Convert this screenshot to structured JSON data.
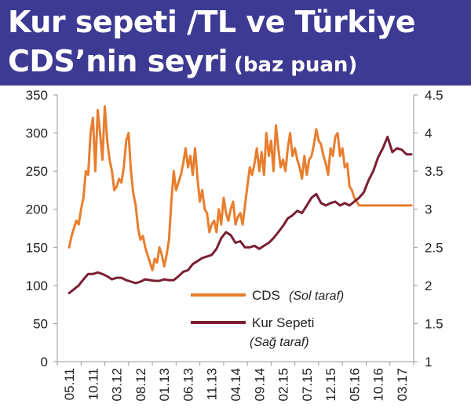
{
  "header": {
    "title_line1": "Kur sepeti /TL ve Türkiye",
    "title_line2": "CDS’nin seyri",
    "title_unit": "(baz puan)"
  },
  "colors": {
    "header_bg": "#3c3a93",
    "cds": "#e97e2e",
    "kur_sepeti": "#7a1f33"
  },
  "chart_data": {
    "type": "line",
    "categories": [
      "05.11",
      "10.11",
      "03.12",
      "08.12",
      "01.13",
      "06.13",
      "11.13",
      "04.14",
      "09.14",
      "02.15",
      "07.15",
      "12.15",
      "05.16",
      "10.16",
      "03.17"
    ],
    "y_left": {
      "range": [
        0,
        350
      ],
      "ticks": [
        "0",
        "50",
        "100",
        "150",
        "200",
        "250",
        "300",
        "350"
      ]
    },
    "y_right": {
      "range": [
        1,
        4.5
      ],
      "ticks": [
        "1",
        "1.5",
        "2",
        "2.5",
        "3",
        "3.5",
        "4",
        "4.5"
      ]
    },
    "grid": false,
    "legend_position": "center-right",
    "series": [
      {
        "name": "CDS",
        "note": "(Sol taraf)",
        "axis": "left",
        "x": [
          0,
          0.1,
          0.2,
          0.3,
          0.4,
          0.5,
          0.6,
          0.7,
          0.8,
          0.9,
          1.0,
          1.1,
          1.2,
          1.3,
          1.4,
          1.5,
          1.6,
          1.7,
          1.8,
          1.9,
          2.0,
          2.1,
          2.2,
          2.3,
          2.4,
          2.5,
          2.6,
          2.7,
          2.8,
          2.9,
          3.0,
          3.1,
          3.2,
          3.3,
          3.4,
          3.5,
          3.6,
          3.7,
          3.8,
          3.9,
          4.0,
          4.1,
          4.2,
          4.3,
          4.4,
          4.5,
          4.6,
          4.7,
          4.8,
          4.9,
          5.0,
          5.1,
          5.2,
          5.3,
          5.4,
          5.5,
          5.6,
          5.7,
          5.8,
          5.9,
          6.0,
          6.1,
          6.2,
          6.3,
          6.4,
          6.5,
          6.6,
          6.7,
          6.8,
          6.9,
          7.0,
          7.1,
          7.2,
          7.3,
          7.4,
          7.5,
          7.6,
          7.7,
          7.8,
          7.9,
          8.0,
          8.1,
          8.2,
          8.3,
          8.4,
          8.5,
          8.6,
          8.7,
          8.8,
          8.9,
          9.0,
          9.1,
          9.2,
          9.3,
          9.4,
          9.5,
          9.6,
          9.7,
          9.8,
          9.9,
          10.0,
          10.1,
          10.2,
          10.3,
          10.4,
          10.5,
          10.6,
          10.7,
          10.8,
          10.9,
          11.0,
          11.1,
          11.2,
          11.3,
          11.4,
          11.5,
          11.6,
          11.7,
          11.8,
          11.9,
          12.0,
          12.1,
          12.2,
          12.3,
          12.4,
          12.5,
          12.6,
          12.7,
          12.8,
          12.9,
          13.0,
          13.1,
          13.2,
          13.3,
          13.4,
          13.5,
          13.6,
          13.7,
          13.8,
          13.9,
          14.0,
          14.1,
          14.2,
          14.3,
          14.4
        ],
        "values": [
          150,
          165,
          175,
          185,
          180,
          200,
          215,
          250,
          245,
          300,
          320,
          250,
          330,
          300,
          265,
          335,
          290,
          265,
          250,
          225,
          230,
          240,
          235,
          255,
          290,
          300,
          250,
          220,
          205,
          175,
          160,
          165,
          150,
          140,
          130,
          120,
          135,
          130,
          150,
          140,
          125,
          140,
          160,
          210,
          250,
          225,
          235,
          245,
          260,
          280,
          255,
          270,
          245,
          280,
          240,
          210,
          225,
          200,
          195,
          170,
          180,
          185,
          170,
          200,
          180,
          215,
          195,
          185,
          200,
          210,
          180,
          190,
          195,
          180,
          205,
          230,
          255,
          245,
          260,
          280,
          250,
          275,
          245,
          300,
          270,
          290,
          250,
          310,
          280,
          255,
          265,
          250,
          280,
          300,
          270,
          280,
          265,
          255,
          240,
          270,
          245,
          265,
          270,
          285,
          305,
          290,
          285,
          270,
          260,
          245,
          280,
          270,
          295,
          300,
          270,
          280,
          255,
          260,
          230,
          225,
          215,
          210,
          205,
          205,
          205,
          205,
          205,
          205,
          205,
          205,
          205,
          205,
          205,
          205,
          205,
          205,
          205,
          205,
          205,
          205,
          205,
          205,
          205,
          205,
          205
        ]
      },
      {
        "name": "Kur Sepeti",
        "note": "(Sağ taraf)",
        "axis": "right",
        "x": [
          0,
          0.2,
          0.4,
          0.6,
          0.8,
          1.0,
          1.2,
          1.4,
          1.6,
          1.8,
          2.0,
          2.2,
          2.4,
          2.6,
          2.8,
          3.0,
          3.2,
          3.4,
          3.6,
          3.8,
          4.0,
          4.2,
          4.4,
          4.6,
          4.8,
          5.0,
          5.2,
          5.4,
          5.6,
          5.8,
          6.0,
          6.2,
          6.4,
          6.6,
          6.8,
          7.0,
          7.2,
          7.4,
          7.6,
          7.8,
          8.0,
          8.2,
          8.4,
          8.6,
          8.8,
          9.0,
          9.2,
          9.4,
          9.6,
          9.8,
          10.0,
          10.2,
          10.4,
          10.6,
          10.8,
          11.0,
          11.2,
          11.4,
          11.6,
          11.8,
          12.0,
          12.2,
          12.4,
          12.6,
          12.8,
          13.0,
          13.2,
          13.4,
          13.6,
          13.8,
          14.0,
          14.2,
          14.4
        ],
        "values": [
          1.9,
          1.95,
          2.0,
          2.08,
          2.15,
          2.15,
          2.17,
          2.15,
          2.12,
          2.08,
          2.1,
          2.1,
          2.07,
          2.05,
          2.03,
          2.05,
          2.08,
          2.07,
          2.06,
          2.06,
          2.08,
          2.07,
          2.07,
          2.12,
          2.18,
          2.2,
          2.28,
          2.32,
          2.36,
          2.38,
          2.4,
          2.48,
          2.62,
          2.7,
          2.66,
          2.56,
          2.58,
          2.5,
          2.5,
          2.52,
          2.48,
          2.52,
          2.56,
          2.62,
          2.7,
          2.78,
          2.88,
          2.92,
          2.98,
          2.95,
          3.05,
          3.15,
          3.2,
          3.08,
          3.05,
          3.08,
          3.1,
          3.05,
          3.08,
          3.05,
          3.1,
          3.15,
          3.22,
          3.38,
          3.5,
          3.68,
          3.8,
          3.95,
          3.75,
          3.8,
          3.78,
          3.72,
          3.72
        ]
      }
    ]
  }
}
